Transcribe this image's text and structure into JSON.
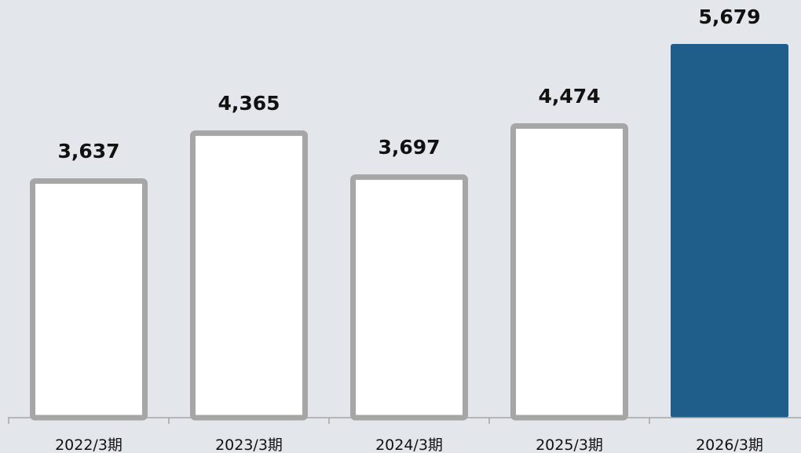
{
  "chart_data": {
    "type": "bar",
    "categories": [
      "2022/3期",
      "2023/3期",
      "2024/3期",
      "2025/3期",
      "2026/3期"
    ],
    "values": [
      3637,
      4365,
      3697,
      4474,
      5679
    ],
    "value_labels": [
      "3,637",
      "4,365",
      "3,697",
      "4,474",
      "5,679"
    ],
    "highlight_index": 4,
    "ylim": [
      0,
      5679
    ],
    "grid": false,
    "legend": "none",
    "title": "",
    "xlabel": "",
    "ylabel": "",
    "colors": {
      "background": "#e3e6ea",
      "bar_fill": "#ffffff",
      "bar_outline": "#a6a6a6",
      "highlight_fill": "#1f5d8b",
      "axis": "#a6a6a6",
      "text": "#111111"
    }
  }
}
